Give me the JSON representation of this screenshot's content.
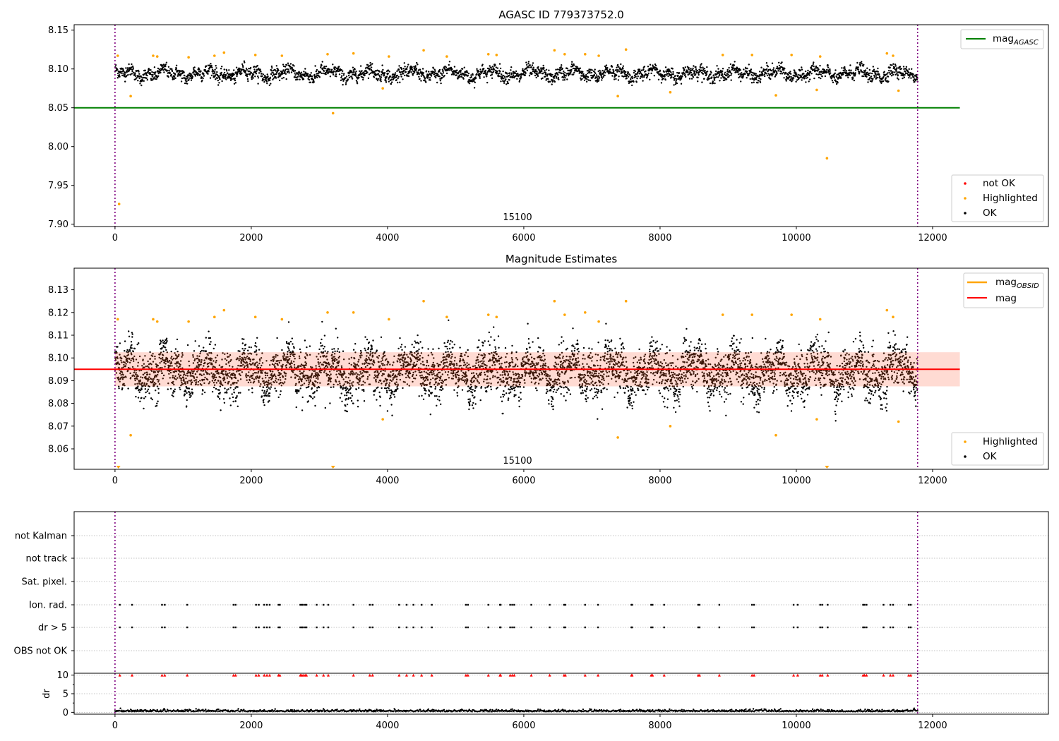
{
  "figure": {
    "title": "AGASC ID 779373752.0",
    "obsid_label": "15100",
    "colors": {
      "ok": "#000000",
      "highlighted": "#ffa500",
      "not_ok": "#ff0000",
      "agasc_line": "#008000",
      "mean_line": "#ff0000",
      "band_fill": "#ffd2c8",
      "vline": "#800080",
      "grid": "#b0b0b0"
    }
  },
  "chart_data": [
    {
      "type": "scatter",
      "title": "AGASC ID 779373752.0",
      "xlim": [
        -600,
        13700
      ],
      "ylim": [
        7.897,
        8.157
      ],
      "xticks": [
        0,
        2000,
        4000,
        6000,
        8000,
        10000,
        12000
      ],
      "yticks": [
        7.9,
        7.95,
        8.0,
        8.05,
        8.1,
        8.15
      ],
      "ytick_labels": [
        "7.90",
        "7.95",
        "8.00",
        "8.05",
        "8.10",
        "8.15"
      ],
      "obsid_boundaries": [
        0,
        11780
      ],
      "annotation": {
        "text": "15100",
        "x": 5900
      },
      "lines": [
        {
          "name": "mag_AGASC",
          "y": 8.05,
          "x": [
            -600,
            12400
          ],
          "color": "#008000"
        }
      ],
      "ok_trend": {
        "base": 8.094,
        "band_halfwidth": 0.012,
        "x_end": 11780
      },
      "highlighted_points": [
        [
          40,
          8.117
        ],
        [
          60,
          7.926
        ],
        [
          230,
          8.065
        ],
        [
          560,
          8.117
        ],
        [
          620,
          8.116
        ],
        [
          1080,
          8.115
        ],
        [
          1460,
          8.117
        ],
        [
          1600,
          8.121
        ],
        [
          2060,
          8.118
        ],
        [
          2450,
          8.117
        ],
        [
          3120,
          8.119
        ],
        [
          3200,
          8.043
        ],
        [
          3500,
          8.12
        ],
        [
          3930,
          8.075
        ],
        [
          4020,
          8.116
        ],
        [
          4530,
          8.124
        ],
        [
          4870,
          8.116
        ],
        [
          5480,
          8.119
        ],
        [
          5600,
          8.118
        ],
        [
          6450,
          8.124
        ],
        [
          6600,
          8.119
        ],
        [
          6900,
          8.119
        ],
        [
          7100,
          8.117
        ],
        [
          7380,
          8.065
        ],
        [
          7500,
          8.125
        ],
        [
          8150,
          8.07
        ],
        [
          8920,
          8.118
        ],
        [
          9350,
          8.118
        ],
        [
          9700,
          8.066
        ],
        [
          9930,
          8.118
        ],
        [
          10300,
          8.073
        ],
        [
          10350,
          8.116
        ],
        [
          10450,
          7.985
        ],
        [
          11330,
          8.12
        ],
        [
          11420,
          8.117
        ],
        [
          11500,
          8.072
        ]
      ],
      "legend": {
        "upper_right": [
          "mag_AGASC"
        ],
        "lower_right": [
          "not OK",
          "Highlighted",
          "OK"
        ]
      }
    },
    {
      "type": "scatter",
      "title": "Magnitude Estimates",
      "xlim": [
        -600,
        13700
      ],
      "ylim": [
        8.051,
        8.1395
      ],
      "xticks": [
        0,
        2000,
        4000,
        6000,
        8000,
        10000,
        12000
      ],
      "yticks": [
        8.06,
        8.07,
        8.08,
        8.09,
        8.1,
        8.11,
        8.12,
        8.13
      ],
      "ytick_labels": [
        "8.06",
        "8.07",
        "8.08",
        "8.09",
        "8.10",
        "8.11",
        "8.12",
        "8.13"
      ],
      "obsid_boundaries": [
        0,
        11780
      ],
      "annotation": {
        "text": "15100",
        "x": 5900
      },
      "mag": 8.095,
      "band": [
        8.0875,
        8.1025
      ],
      "band_x": [
        0,
        12400
      ],
      "lines": [
        {
          "name": "mag_OBSID",
          "color": "#ffa500"
        },
        {
          "name": "mag",
          "y": 8.095,
          "x": [
            -600,
            12400
          ],
          "color": "#ff0000"
        }
      ],
      "ok_trend": {
        "base": 8.094,
        "band_halfwidth": 0.012,
        "x_end": 11780
      },
      "highlighted_points": [
        [
          40,
          8.117
        ],
        [
          230,
          8.066
        ],
        [
          560,
          8.117
        ],
        [
          620,
          8.116
        ],
        [
          1080,
          8.116
        ],
        [
          1460,
          8.118
        ],
        [
          1600,
          8.121
        ],
        [
          2060,
          8.118
        ],
        [
          2450,
          8.117
        ],
        [
          3120,
          8.12
        ],
        [
          3500,
          8.12
        ],
        [
          3930,
          8.073
        ],
        [
          4020,
          8.117
        ],
        [
          4530,
          8.125
        ],
        [
          4870,
          8.118
        ],
        [
          5480,
          8.119
        ],
        [
          5600,
          8.118
        ],
        [
          6450,
          8.125
        ],
        [
          6600,
          8.119
        ],
        [
          6900,
          8.12
        ],
        [
          7100,
          8.116
        ],
        [
          7380,
          8.065
        ],
        [
          7500,
          8.125
        ],
        [
          8150,
          8.07
        ],
        [
          8920,
          8.119
        ],
        [
          9350,
          8.119
        ],
        [
          9700,
          8.066
        ],
        [
          9930,
          8.119
        ],
        [
          10300,
          8.073
        ],
        [
          10350,
          8.117
        ],
        [
          11330,
          8.121
        ],
        [
          11420,
          8.118
        ],
        [
          11500,
          8.072
        ]
      ],
      "offscale_markers": [
        50,
        3200,
        10450
      ],
      "legend": {
        "upper_right": [
          "mag_OBSID",
          "mag"
        ],
        "lower_right": [
          "Highlighted",
          "OK"
        ]
      }
    },
    {
      "type": "scatter",
      "title": "",
      "xlim": [
        -600,
        13700
      ],
      "xticks": [
        0,
        2000,
        4000,
        6000,
        8000,
        10000,
        12000
      ],
      "obsid_boundaries": [
        0,
        11780
      ],
      "categories": [
        "not Kalman",
        "not track",
        "Sat. pixel.",
        "Ion. rad.",
        "dr > 5",
        "OBS not OK"
      ],
      "flag_times": [
        70,
        250,
        690,
        730,
        1060,
        1740,
        1770,
        2070,
        2110,
        2190,
        2230,
        2270,
        2400,
        2420,
        2720,
        2740,
        2760,
        2790,
        2810,
        2960,
        3060,
        3130,
        3500,
        3740,
        3780,
        4170,
        4280,
        4380,
        4500,
        4650,
        5150,
        5180,
        5480,
        5650,
        5660,
        5800,
        5830,
        5860,
        6110,
        6380,
        6590,
        6610,
        6900,
        7090,
        7580,
        7590,
        7870,
        7890,
        8060,
        8560,
        8580,
        8870,
        9350,
        9380,
        9960,
        10020,
        10350,
        10380,
        10460,
        10980,
        11000,
        11030,
        11280,
        11380,
        11420,
        11650,
        11680
      ]
    },
    {
      "type": "scatter",
      "title": "",
      "ylabel": "dr",
      "xlim": [
        -600,
        13700
      ],
      "ylim": [
        -0.5,
        10.5
      ],
      "xticks": [
        0,
        2000,
        4000,
        6000,
        8000,
        10000,
        12000
      ],
      "xtick_labels": [
        "0",
        "2000",
        "4000",
        "6000",
        "8000",
        "10000",
        "12000"
      ],
      "yticks": [
        0,
        5,
        10
      ],
      "ytick_labels": [
        "0",
        "5",
        "10"
      ],
      "obsid_boundaries": [
        0,
        11780
      ],
      "dr_baseline": 0.2,
      "clipped_value": 10
    }
  ]
}
